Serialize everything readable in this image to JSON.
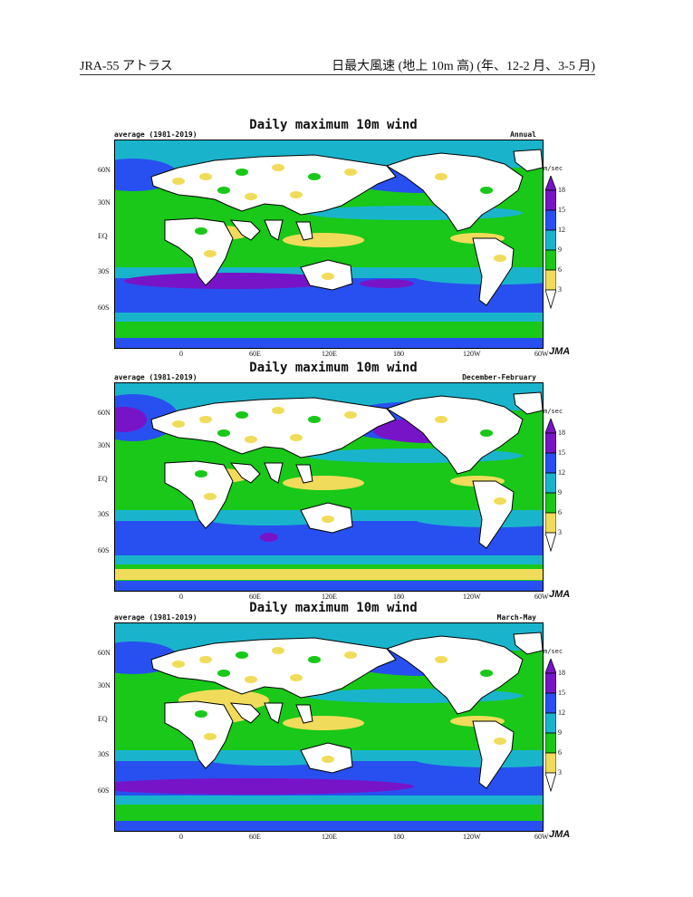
{
  "header": {
    "left": "JRA-55 アトラス",
    "right": "日最大風速 (地上 10m 高) (年、12-2 月、3-5 月)"
  },
  "colors": {
    "white": "#ffffff",
    "yellow": "#f0dc5a",
    "green": "#19c819",
    "cyan": "#19b4cc",
    "blue": "#2850f0",
    "purple": "#7814c8"
  },
  "panels": [
    {
      "title": "Daily maximum 10m wind",
      "average_label": "average (1981-2019)",
      "season": "Annual"
    },
    {
      "title": "Daily maximum 10m wind",
      "average_label": "average (1981-2019)",
      "season": "December-February"
    },
    {
      "title": "Daily maximum 10m wind",
      "average_label": "average (1981-2019)",
      "season": "March-May"
    }
  ],
  "lat_labels": [
    "60N",
    "30N",
    "EQ",
    "30S",
    "60S"
  ],
  "lon_labels": [
    "0",
    "60E",
    "120E",
    "180",
    "120W",
    "60W"
  ],
  "colorbar": {
    "unit": "m/sec",
    "levels": [
      "18",
      "15",
      "12",
      "9",
      "6",
      "3"
    ]
  },
  "agency": "JMA"
}
